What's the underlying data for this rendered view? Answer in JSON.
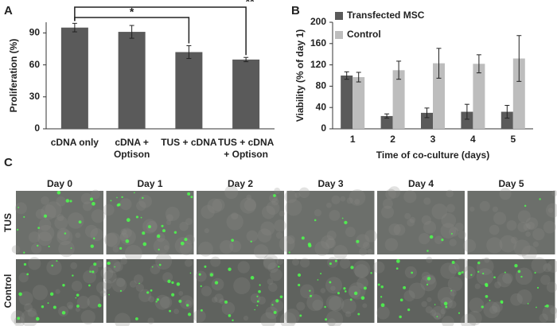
{
  "chart_data": [
    {
      "type": "bar",
      "label": "A",
      "ylabel": "Proliferation (%)",
      "categories": [
        "cDNA only",
        "cDNA + Optison",
        "TUS + cDNA",
        "TUS + cDNA + Optison"
      ],
      "values": [
        95,
        91,
        72,
        65
      ],
      "errors": [
        4,
        6,
        6,
        2
      ],
      "color": "#5a5a5a",
      "ylim": [
        0,
        100
      ],
      "yticks": [
        0,
        30,
        60,
        90
      ],
      "annotations": [
        "*",
        "**"
      ]
    },
    {
      "type": "grouped-bar",
      "label": "B",
      "xlabel": "Time of co-culture (days)",
      "ylabel": "Viability (% of day 1)",
      "categories": [
        "1",
        "2",
        "3",
        "4",
        "5"
      ],
      "series": [
        {
          "name": "Transfected MSC",
          "color": "#5a5a5a",
          "values": [
            100,
            24,
            30,
            32,
            32
          ],
          "errors": [
            7,
            4,
            9,
            14,
            12
          ]
        },
        {
          "name": "Control",
          "color": "#bdbdbd",
          "values": [
            97,
            110,
            123,
            122,
            132
          ],
          "errors": [
            9,
            17,
            28,
            17,
            43
          ]
        }
      ],
      "ylim": [
        0,
        200
      ],
      "yticks": [
        0,
        40,
        80,
        120,
        160,
        200
      ],
      "legend": "top-left"
    }
  ],
  "panel_c": {
    "label": "C",
    "columns": [
      "Day 0",
      "Day 1",
      "Day 2",
      "Day 3",
      "Day 4",
      "Day 5"
    ],
    "rows": [
      "TUS",
      "Control"
    ]
  }
}
